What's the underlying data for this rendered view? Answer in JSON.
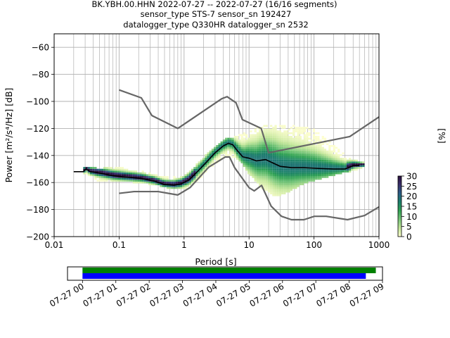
{
  "title": {
    "line1": "BK.YBH.00.HHN   2022-07-27 -- 2022-07-27  (16/16 segments)",
    "line2": "sensor_type STS-7 sensor_sn 192427",
    "line3": "datalogger_type Q330HR datalogger_sn 2532"
  },
  "colors": {
    "mean": "#000000",
    "noise_models": "#666666",
    "grid_major": "#b0b0b0",
    "coverage_data": "#008000",
    "coverage_gaps": "#0000ff",
    "colormap": [
      "#fdfece",
      "#c2e699",
      "#78c679",
      "#31a354",
      "#1b7f6b",
      "#2a5d86",
      "#3a2f6b",
      "#2a0f3d"
    ]
  },
  "chart_data": [
    {
      "type": "heatmap",
      "xlabel": "Period [s]",
      "ylabel": "Power [m²/s⁴/Hz] [dB]",
      "xscale": "log",
      "xlim": [
        0.01,
        1000
      ],
      "ylim": [
        -200,
        -50
      ],
      "xticks": [
        {
          "value": 0.01,
          "label": "0.01"
        },
        {
          "value": 0.1,
          "label": "0.1"
        },
        {
          "value": 1,
          "label": "1"
        },
        {
          "value": 10,
          "label": "10"
        },
        {
          "value": 100,
          "label": "100"
        },
        {
          "value": 1000,
          "label": "1000"
        }
      ],
      "yticks": [
        {
          "value": -60,
          "label": "−60"
        },
        {
          "value": -80,
          "label": "−80"
        },
        {
          "value": -100,
          "label": "−100"
        },
        {
          "value": -120,
          "label": "−120"
        },
        {
          "value": -140,
          "label": "−140"
        },
        {
          "value": -160,
          "label": "−160"
        },
        {
          "value": -180,
          "label": "−180"
        },
        {
          "value": -200,
          "label": "−200"
        }
      ],
      "grid": true,
      "colorbar": {
        "label": "[%]",
        "range": [
          0,
          30
        ],
        "ticks": [
          {
            "value": 0,
            "label": "0"
          },
          {
            "value": 5,
            "label": "5"
          },
          {
            "value": 10,
            "label": "10"
          },
          {
            "value": 15,
            "label": "15"
          },
          {
            "value": 20,
            "label": "20"
          },
          {
            "value": 25,
            "label": "25"
          },
          {
            "value": 30,
            "label": "30"
          }
        ]
      },
      "series": [
        {
          "role": "mean",
          "x": [
            0.02,
            0.028,
            0.031,
            0.036,
            0.05,
            0.08,
            0.13,
            0.22,
            0.35,
            0.5,
            0.7,
            0.9,
            1.2,
            1.6,
            2.2,
            3.0,
            4.0,
            4.8,
            5.6,
            6.5,
            8.0,
            10,
            13,
            18,
            22,
            30,
            45,
            70,
            110,
            200,
            300,
            400,
            500
          ],
          "y": [
            -152,
            -152,
            -150,
            -152,
            -153,
            -155,
            -156,
            -157,
            -159,
            -161.5,
            -162,
            -161,
            -158,
            -152,
            -145,
            -138,
            -133,
            -131,
            -132,
            -136,
            -141,
            -142,
            -144,
            -143,
            -145,
            -148,
            -149,
            -149,
            -149.5,
            -150,
            -150,
            -147.5,
            -147.5
          ]
        },
        {
          "role": "nhnm",
          "x": [
            0.1,
            0.22,
            0.32,
            0.8,
            3.8,
            4.6,
            6.3,
            7.9,
            15.4,
            20,
            354.8,
            1000
          ],
          "y": [
            -91.5,
            -97.4,
            -110.5,
            -120,
            -98,
            -96.5,
            -101,
            -113.5,
            -120,
            -138,
            -126,
            -111.5
          ]
        },
        {
          "role": "nlnm",
          "x": [
            0.1,
            0.17,
            0.4,
            0.8,
            1.24,
            2.4,
            4.3,
            5.0,
            6.0,
            10,
            12,
            15.6,
            21.9,
            31.6,
            45,
            70,
            101,
            154,
            328,
            600,
            1000
          ],
          "y": [
            -168,
            -166.7,
            -166.7,
            -169.2,
            -163.7,
            -148.6,
            -141.1,
            -141.1,
            -149,
            -163.8,
            -166.2,
            -162.1,
            -177.5,
            -185,
            -187.5,
            -187.5,
            -185,
            -185,
            -187.5,
            -184.4,
            -178
          ]
        }
      ],
      "envelope": {
        "x": [
          0.028,
          0.05,
          0.1,
          0.2,
          0.35,
          0.6,
          1,
          1.5,
          2.2,
          3,
          4.5,
          6,
          8,
          10,
          15,
          25,
          40,
          60,
          100,
          200,
          400,
          600
        ],
        "upper": [
          -149,
          -150,
          -149,
          -152,
          -154,
          -157,
          -155,
          -148,
          -140,
          -134,
          -127,
          -127,
          -124,
          -122,
          -119,
          -118,
          -118,
          -119,
          -121,
          -133,
          -144,
          -145
        ],
        "lower": [
          -154,
          -159,
          -158,
          -160,
          -161,
          -164,
          -164,
          -160,
          -152,
          -146,
          -140,
          -141,
          -146,
          -153,
          -163,
          -170,
          -167,
          -162,
          -158,
          -154,
          -151,
          -148
        ]
      }
    },
    {
      "type": "bar",
      "name": "data coverage",
      "x_tick_labels": [
        "07-27 00",
        "07-27 01",
        "07-27 02",
        "07-27 03",
        "07-27 04",
        "07-27 05",
        "07-27 06",
        "07-27 07",
        "07-27 08",
        "07-27 09"
      ],
      "xlim_hours": [
        -0.45,
        9.0
      ],
      "bars": [
        {
          "role": "data",
          "start_hour": 0.0,
          "end_hour": 8.8,
          "color": "#008000"
        },
        {
          "role": "psd_segments",
          "start_hour": 0.0,
          "end_hour": 8.5,
          "color": "#0000ff"
        }
      ]
    }
  ]
}
